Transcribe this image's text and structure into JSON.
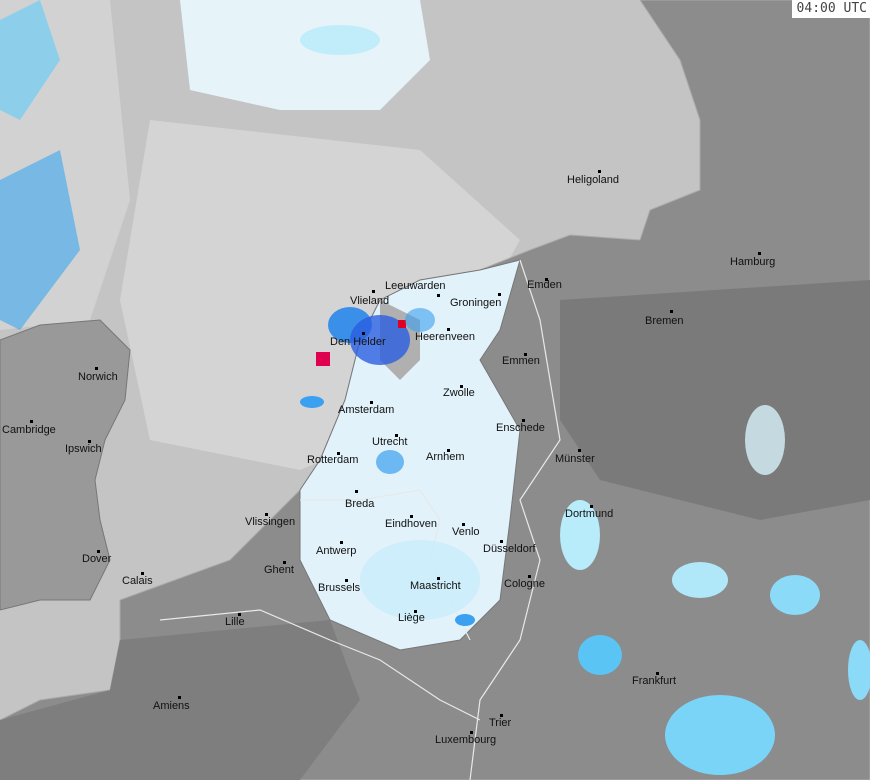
{
  "map": {
    "type": "weather radar precipitation map",
    "timestamp": "04:00 UTC",
    "colors": {
      "sea": "#c4c4c4",
      "land": "#8c8c8c",
      "radar_coverage": "#e2f2fa",
      "light_precip": "#a8e4f8",
      "moderate_precip": "#3aa0f0",
      "heavy_precip": "#2050e0",
      "intense_precip": "#e0108a",
      "extreme_precip": "#e00020"
    },
    "cities": [
      "Heligoland",
      "Hamburg",
      "Emden",
      "Vlieland",
      "Leeuwarden",
      "Groningen",
      "Bremen",
      "Den Helder",
      "Heerenveen",
      "Emmen",
      "Norwich",
      "Zwolle",
      "Amsterdam",
      "Enschede",
      "Cambridge",
      "Utrecht",
      "Ipswich",
      "Arnhem",
      "Münster",
      "Rotterdam",
      "Breda",
      "Dortmund",
      "Vlissingen",
      "Eindhoven",
      "Venlo",
      "Antwerp",
      "Düsseldorf",
      "Dover",
      "Ghent",
      "Calais",
      "Cologne",
      "Brussels",
      "Maastricht",
      "Lille",
      "Liège",
      "Frankfurt",
      "Amiens",
      "Trier",
      "Luxembourg"
    ]
  }
}
